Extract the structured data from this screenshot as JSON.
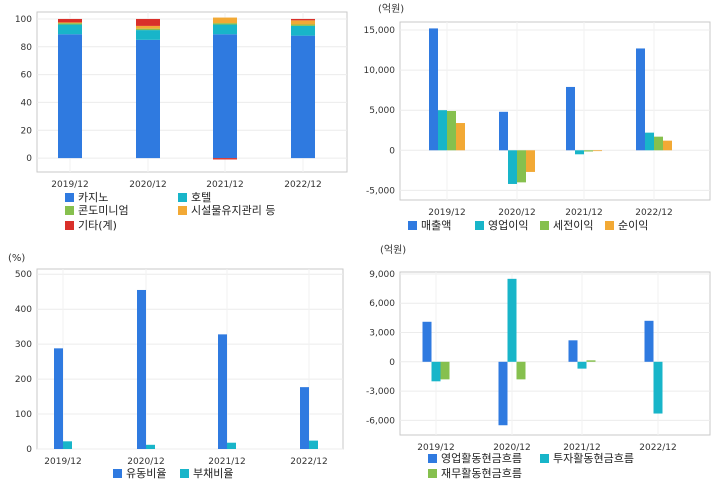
{
  "chart_data": [
    {
      "type": "bar",
      "stacked": true,
      "unit": "",
      "categories": [
        "2019/12",
        "2020/12",
        "2021/12",
        "2022/12"
      ],
      "yticks": [
        "100",
        "80",
        "60",
        "40",
        "20",
        "0"
      ],
      "ylim": [
        -10,
        105
      ],
      "grid": true,
      "legend_position": "bottom",
      "series": [
        {
          "name": "카지노",
          "color": "#2f7ae0",
          "values": [
            89,
            85,
            89,
            88
          ]
        },
        {
          "name": "호텔",
          "color": "#18b5c9",
          "values": [
            7,
            7,
            7,
            7
          ]
        },
        {
          "name": "콘도미니엄",
          "color": "#86c04e",
          "values": [
            1,
            1,
            1,
            1
          ]
        },
        {
          "name": "시설물유지관리 등",
          "color": "#f2a935",
          "values": [
            0.5,
            2,
            4,
            3
          ]
        },
        {
          "name": "기타(계)",
          "color": "#d9302a",
          "values": [
            2.5,
            5,
            -1,
            1
          ]
        }
      ]
    },
    {
      "type": "bar",
      "unit": "(억원)",
      "categories": [
        "2019/12",
        "2020/12",
        "2021/12",
        "2022/12"
      ],
      "yticks": [
        "15,000",
        "10,000",
        "5,000",
        "0",
        "-5,000"
      ],
      "ylim": [
        -6200,
        16000
      ],
      "grid": true,
      "legend_position": "bottom",
      "series": [
        {
          "name": "매출액",
          "color": "#2f7ae0",
          "values": [
            15200,
            4800,
            7900,
            12700
          ]
        },
        {
          "name": "영업이익",
          "color": "#18b5c9",
          "values": [
            5000,
            -4200,
            -500,
            2200
          ]
        },
        {
          "name": "세전이익",
          "color": "#86c04e",
          "values": [
            4900,
            -4000,
            -150,
            1700
          ]
        },
        {
          "name": "순이익",
          "color": "#f2a935",
          "values": [
            3400,
            -2700,
            -100,
            1200
          ]
        }
      ]
    },
    {
      "type": "bar",
      "unit": "(%)",
      "categories": [
        "2019/12",
        "2020/12",
        "2021/12",
        "2022/12"
      ],
      "yticks": [
        "500",
        "400",
        "300",
        "200",
        "100",
        "0"
      ],
      "ylim": [
        0,
        515
      ],
      "grid": true,
      "legend_position": "bottom",
      "series": [
        {
          "name": "유동비율",
          "color": "#2f7ae0",
          "values": [
            288,
            455,
            328,
            177
          ]
        },
        {
          "name": "부채비율",
          "color": "#18b5c9",
          "values": [
            22,
            12,
            18,
            24
          ]
        }
      ]
    },
    {
      "type": "bar",
      "unit": "(억원)",
      "categories": [
        "2019/12",
        "2020/12",
        "2021/12",
        "2022/12"
      ],
      "yticks": [
        "9,000",
        "6,000",
        "3,000",
        "0",
        "-3,000",
        "-6,000"
      ],
      "ylim": [
        -7500,
        9200
      ],
      "grid": true,
      "legend_position": "bottom",
      "series": [
        {
          "name": "영업활동현금흐름",
          "color": "#2f7ae0",
          "values": [
            4100,
            -6500,
            2200,
            4200
          ]
        },
        {
          "name": "투자활동현금흐름",
          "color": "#18b5c9",
          "values": [
            -2000,
            8500,
            -700,
            -5300
          ]
        },
        {
          "name": "재무활동현금흐름",
          "color": "#86c04e",
          "values": [
            -1800,
            -1800,
            150,
            0
          ]
        }
      ]
    }
  ]
}
